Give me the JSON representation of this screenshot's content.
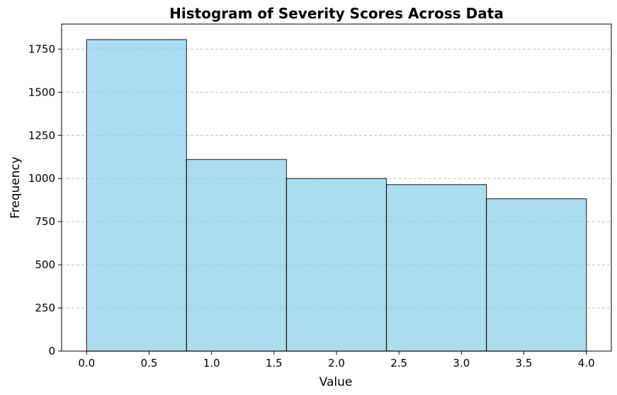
{
  "chart_data": {
    "type": "bar",
    "subtype": "histogram",
    "title": "Histogram of Severity Scores Across Data",
    "xlabel": "Value",
    "ylabel": "Frequency",
    "bins": [
      {
        "start": 0.0,
        "end": 0.8,
        "value": 1805
      },
      {
        "start": 0.8,
        "end": 1.6,
        "value": 1110
      },
      {
        "start": 1.6,
        "end": 2.4,
        "value": 1000
      },
      {
        "start": 2.4,
        "end": 3.2,
        "value": 965
      },
      {
        "start": 3.2,
        "end": 4.0,
        "value": 883
      }
    ],
    "xlim": [
      -0.2,
      4.2
    ],
    "ylim": [
      0,
      1895
    ],
    "xticks": [
      0.0,
      0.5,
      1.0,
      1.5,
      2.0,
      2.5,
      3.0,
      3.5,
      4.0
    ],
    "xtick_labels": [
      "0.0",
      "0.5",
      "1.0",
      "1.5",
      "2.0",
      "2.5",
      "3.0",
      "3.5",
      "4.0"
    ],
    "yticks": [
      0,
      250,
      500,
      750,
      1000,
      1250,
      1500,
      1750
    ],
    "ytick_labels": [
      "0",
      "250",
      "500",
      "750",
      "1000",
      "1250",
      "1500",
      "1750"
    ],
    "grid": "y-dashed",
    "colors": {
      "bar_fill": "#87ceeb",
      "bar_edge": "#000000",
      "grid": "#b0b0b0"
    }
  }
}
